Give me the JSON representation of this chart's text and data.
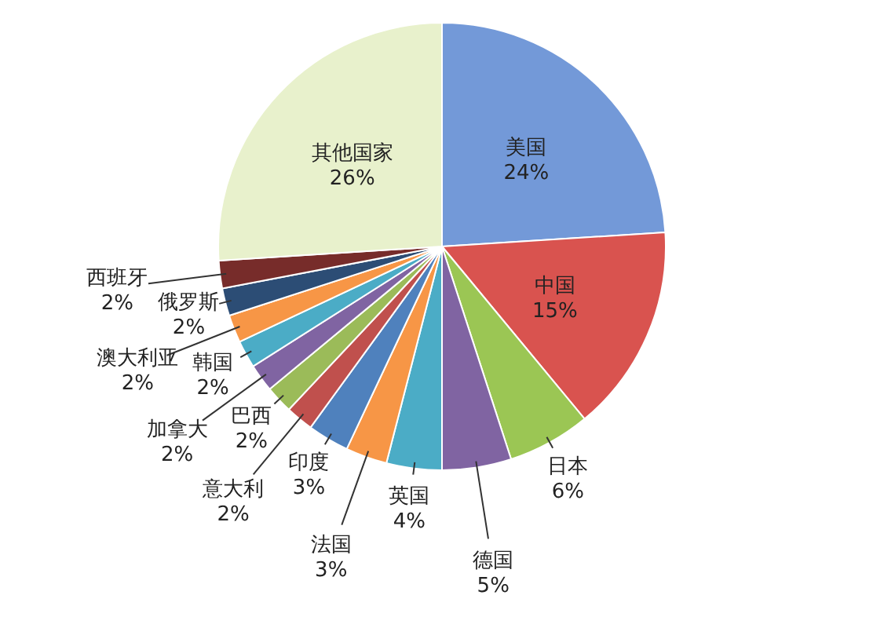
{
  "chart_data": {
    "type": "pie",
    "categories": [
      "美国",
      "中国",
      "日本",
      "德国",
      "英国",
      "法国",
      "印度",
      "意大利",
      "巴西",
      "加拿大",
      "韩国",
      "澳大利亚",
      "俄罗斯",
      "西班牙",
      "其他国家"
    ],
    "values": [
      24,
      15,
      6,
      5,
      4,
      3,
      3,
      2,
      2,
      2,
      2,
      2,
      2,
      2,
      26
    ],
    "value_labels": [
      "24%",
      "15%",
      "6%",
      "5%",
      "4%",
      "3%",
      "3%",
      "2%",
      "2%",
      "2%",
      "2%",
      "2%",
      "2%",
      "2%",
      "26%"
    ],
    "colors": [
      "#7399d8",
      "#d9534f",
      "#9bc654",
      "#8064a2",
      "#4bacc6",
      "#f79646",
      "#4f81bd",
      "#c0504d",
      "#9bbb59",
      "#8064a2",
      "#4bacc6",
      "#f79646",
      "#2c4d75",
      "#772c2a",
      "#e8f1cc"
    ],
    "legend": false
  }
}
